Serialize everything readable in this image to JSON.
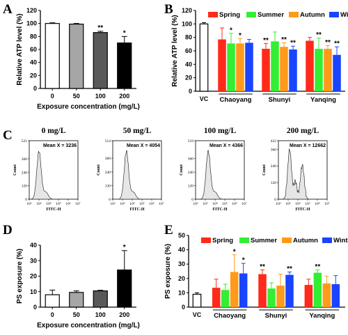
{
  "panel_labels": [
    "A",
    "B",
    "C",
    "D",
    "E"
  ],
  "chart_data": [
    {
      "id": "A",
      "type": "bar",
      "ylabel": "Relative ATP level (%)",
      "xlabel": "Exposure concentration (mg/L)",
      "ylim": [
        0,
        120
      ],
      "yticks": [
        "0",
        "20",
        "40",
        "60",
        "80",
        "100",
        "120"
      ],
      "categories": [
        "0",
        "50",
        "100",
        "200"
      ],
      "values": [
        100,
        99,
        86,
        70
      ],
      "errors": [
        1,
        1,
        2,
        10
      ],
      "colors": [
        "#ffffff",
        "#a6a6a6",
        "#595959",
        "#000000"
      ],
      "significance": [
        "",
        "",
        "**",
        "*"
      ]
    },
    {
      "id": "B",
      "type": "bar",
      "ylabel": "Relative ATP level (%)",
      "ylim": [
        0,
        120
      ],
      "yticks": [
        "0",
        "20",
        "40",
        "60",
        "80",
        "100",
        "120"
      ],
      "control": {
        "label": "VC",
        "value": 100,
        "error": 2,
        "color": "#ffffff"
      },
      "groups": [
        "Chaoyang",
        "Shunyi",
        "Yanqing"
      ],
      "series": [
        {
          "name": "Spring",
          "color": "#ff2a1a",
          "values": [
            77,
            63,
            75
          ],
          "errors": [
            17,
            8,
            5
          ],
          "significance": [
            "",
            "**",
            ""
          ]
        },
        {
          "name": "Summer",
          "color": "#33ee33",
          "values": [
            71,
            74,
            63
          ],
          "errors": [
            15,
            14,
            16
          ],
          "significance": [
            "*",
            "",
            "**"
          ]
        },
        {
          "name": "Autumn",
          "color": "#ff9a1a",
          "values": [
            71,
            66,
            63
          ],
          "errors": [
            7,
            6,
            5
          ],
          "significance": [
            "*",
            "**",
            "**"
          ]
        },
        {
          "name": "Winter",
          "color": "#1a44ff",
          "values": [
            72,
            62,
            54
          ],
          "errors": [
            5,
            5,
            12
          ],
          "significance": [
            "",
            "**",
            "**"
          ]
        }
      ]
    },
    {
      "id": "C",
      "type": "area",
      "xlabel": "FITC-H",
      "ylabel": "Count",
      "xticks": [
        "10²",
        "10³",
        "10⁴",
        "10⁵",
        "10⁶",
        "10⁷"
      ],
      "panels": [
        {
          "title": "0 mg/L",
          "annotation": "Mean X = 3236",
          "ylim": [
            0,
            521
          ],
          "yticks": [
            "0",
            "120",
            "240",
            "360",
            "521"
          ],
          "peak_log10": 3.0
        },
        {
          "title": "50 mg/L",
          "annotation": "Mean X = 4054",
          "ylim": [
            0,
            514
          ],
          "yticks": [
            "0",
            "120",
            "240",
            "360",
            "514"
          ],
          "peak_log10": 3.4
        },
        {
          "title": "100 mg/L",
          "annotation": "Mean X = 4366",
          "ylim": [
            0,
            519
          ],
          "yticks": [
            "0",
            "120",
            "240",
            "360",
            "519"
          ],
          "peak_log10": 3.3
        },
        {
          "title": "200 mg/L",
          "annotation": "Mean X = 12662",
          "ylim": [
            0,
            422
          ],
          "yticks": [
            "0",
            "120",
            "240",
            "360",
            "422"
          ],
          "peak_log10": 3.5
        }
      ]
    },
    {
      "id": "D",
      "type": "bar",
      "ylabel": "PS exposure  (%)",
      "xlabel": "Exposure concentration (mg/L)",
      "ylim": [
        0,
        40
      ],
      "yticks": [
        "0",
        "10",
        "20",
        "30",
        "40"
      ],
      "categories": [
        "0",
        "50",
        "100",
        "200"
      ],
      "values": [
        8,
        9.5,
        10.5,
        24
      ],
      "errors": [
        3,
        1,
        0.4,
        12.5
      ],
      "colors": [
        "#ffffff",
        "#a6a6a6",
        "#595959",
        "#000000"
      ],
      "significance": [
        "",
        "",
        "",
        "*"
      ]
    },
    {
      "id": "E",
      "type": "bar",
      "ylabel": "PS exposure (%)",
      "ylim": [
        0,
        50
      ],
      "yticks": [
        "0",
        "10",
        "20",
        "30",
        "40",
        "50"
      ],
      "control": {
        "label": "VC",
        "value": 9,
        "error": 1,
        "color": "#ffffff"
      },
      "groups": [
        "Chaoyang",
        "Shunyi",
        "Yanqing"
      ],
      "series": [
        {
          "name": "Spring",
          "color": "#ff2a1a",
          "values": [
            13.5,
            23,
            15.5
          ],
          "errors": [
            6,
            3,
            4
          ],
          "significance": [
            "",
            "**",
            ""
          ]
        },
        {
          "name": "Summer",
          "color": "#33ee33",
          "values": [
            12,
            13,
            24
          ],
          "errors": [
            4,
            4,
            2
          ],
          "significance": [
            "",
            "",
            "**"
          ]
        },
        {
          "name": "Autumn",
          "color": "#ff9a1a",
          "values": [
            24.5,
            15,
            16.5
          ],
          "errors": [
            12,
            8,
            5
          ],
          "significance": [
            "*",
            "",
            ""
          ]
        },
        {
          "name": "Winter",
          "color": "#1a44ff",
          "values": [
            23.5,
            22.5,
            16
          ],
          "errors": [
            7,
            2,
            6
          ],
          "significance": [
            "*",
            "**",
            ""
          ]
        }
      ]
    }
  ]
}
